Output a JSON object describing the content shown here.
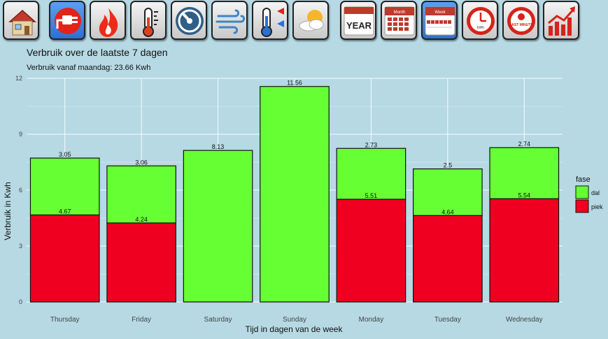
{
  "toolbar": {
    "buttons": [
      {
        "name": "home-icon",
        "active": false
      },
      {
        "name": "power-plug-icon",
        "active": true
      },
      {
        "name": "gas-flame-icon",
        "active": false
      },
      {
        "name": "thermometer-icon",
        "active": false
      },
      {
        "name": "gauge-meter-icon",
        "active": false
      },
      {
        "name": "wind-icon",
        "active": false
      },
      {
        "name": "temperature-inout-icon",
        "active": false
      },
      {
        "name": "weather-sun-cloud-icon",
        "active": false
      },
      {
        "name": "calendar-year-icon",
        "active": false,
        "label": "YEAR"
      },
      {
        "name": "calendar-month-icon",
        "active": false,
        "label": "Month"
      },
      {
        "name": "calendar-week-icon",
        "active": true,
        "label": "Week"
      },
      {
        "name": "clock-timer-icon",
        "active": false,
        "label": "kWh"
      },
      {
        "name": "last-minute-icon",
        "active": false,
        "label": "LAST MINUTE"
      },
      {
        "name": "trend-chart-icon",
        "active": false
      }
    ]
  },
  "chart_data": {
    "type": "bar",
    "stacked": true,
    "title": "Verbruik over de laatste 7 dagen",
    "subtitle": "Verbruik vanaf maandag: 23.66 Kwh",
    "xlabel": "Tijd in dagen van de week",
    "ylabel": "Verbruik in Kwh",
    "ylim": [
      0,
      12
    ],
    "yticks": [
      "0",
      "3",
      "6",
      "9",
      "12"
    ],
    "grid": true,
    "legend_position": "right",
    "legend_title": "fase",
    "categories": [
      "Thursday",
      "Friday",
      "Saturday",
      "Sunday",
      "Monday",
      "Tuesday",
      "Wednesday"
    ],
    "series": [
      {
        "name": "piek",
        "color": "#ef0020",
        "values": [
          4.67,
          4.24,
          0,
          0,
          5.51,
          4.64,
          5.54
        ],
        "labels": [
          "4.67",
          "4.24",
          "",
          "",
          "5.51",
          "4.64",
          "5.54"
        ]
      },
      {
        "name": "dal",
        "color": "#66ff33",
        "values": [
          3.05,
          3.06,
          8.13,
          11.56,
          2.73,
          2.5,
          2.74
        ],
        "labels": [
          "3.05",
          "3.06",
          "8.13",
          "11.56",
          "2.73",
          "2.5",
          "2.74"
        ]
      }
    ],
    "legend_order": [
      "dal",
      "piek"
    ]
  }
}
